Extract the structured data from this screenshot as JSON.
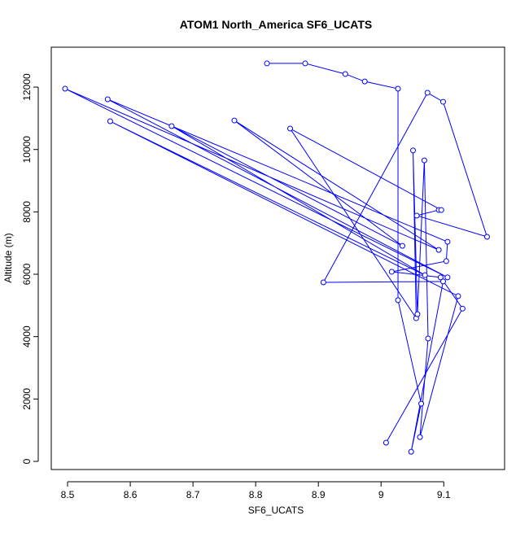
{
  "chart_data": {
    "type": "line",
    "title": "ATOM1 North_America SF6_UCATS",
    "x_label": "SF6_UCATS",
    "y_label": "Altitude (m)",
    "x": [
      8.818,
      8.879,
      8.943,
      8.974,
      9.027,
      9.027,
      9.064,
      9.048,
      9.099,
      8.908,
      9.074,
      9.099,
      9.169,
      9.057,
      9.092,
      9.096,
      8.855,
      9.056,
      9.051,
      9.058,
      9.069,
      9.075,
      9.062,
      9.123,
      8.568,
      9.07,
      8.666,
      9.034,
      8.766,
      9.092,
      8.496,
      9.106,
      8.564,
      9.106,
      9.104,
      9.017,
      9.095,
      9.13,
      9.008
    ],
    "y": [
      12760,
      12760,
      12420,
      12180,
      11950,
      5170,
      1850,
      310,
      5770,
      5740,
      11820,
      11530,
      7200,
      7880,
      8060,
      8060,
      10670,
      4590,
      9970,
      4720,
      9650,
      3940,
      780,
      5300,
      10905,
      5970,
      10750,
      6910,
      10930,
      6780,
      11950,
      5900,
      11610,
      7040,
      6420,
      6080,
      5900,
      4900,
      600
    ],
    "color": "#0000ff",
    "xlim": [
      8.474,
      9.197
    ],
    "ylim": [
      -261,
      13280
    ],
    "xticks": [
      8.5,
      8.6,
      8.7,
      8.8,
      8.9,
      9.0,
      9.1
    ],
    "yticks": [
      0,
      2000,
      4000,
      6000,
      8000,
      10000,
      12000
    ]
  }
}
